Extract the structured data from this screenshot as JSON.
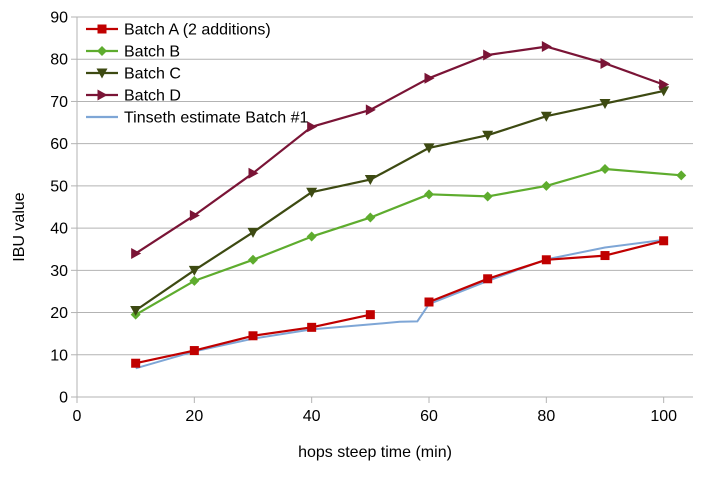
{
  "chart_data": {
    "type": "line",
    "title": "",
    "xlabel": "hops steep time (min)",
    "ylabel": "IBU value",
    "xlim": [
      0,
      105
    ],
    "ylim": [
      0,
      90
    ],
    "x_ticks": [
      0,
      20,
      40,
      60,
      80,
      100
    ],
    "y_ticks": [
      0,
      10,
      20,
      30,
      40,
      50,
      60,
      70,
      80,
      90
    ],
    "grid": "horizontal",
    "legend_position": "top-left",
    "series": [
      {
        "name": "Batch A (2 additions)",
        "color": "#c00000",
        "marker": "square",
        "segments": [
          [
            [
              10,
              8
            ],
            [
              20,
              11
            ],
            [
              30,
              14.5
            ],
            [
              40,
              16.5
            ],
            [
              50,
              19.5
            ]
          ],
          [
            [
              60,
              22.5
            ],
            [
              70,
              28
            ],
            [
              80,
              32.5
            ],
            [
              90,
              33.5
            ],
            [
              100,
              37
            ]
          ]
        ]
      },
      {
        "name": "Batch B",
        "color": "#5eac2e",
        "marker": "diamond",
        "segments": [
          [
            [
              10,
              19.5
            ],
            [
              20,
              27.5
            ],
            [
              30,
              32.5
            ],
            [
              40,
              38
            ],
            [
              50,
              42.5
            ],
            [
              60,
              48
            ],
            [
              70,
              47.5
            ],
            [
              80,
              50
            ],
            [
              90,
              54
            ],
            [
              103,
              52.5
            ]
          ]
        ]
      },
      {
        "name": "Batch C",
        "color": "#3d4a12",
        "marker": "triangle-down",
        "segments": [
          [
            [
              10,
              20.5
            ],
            [
              20,
              30
            ],
            [
              30,
              39
            ],
            [
              40,
              48.5
            ],
            [
              50,
              51.5
            ],
            [
              60,
              59
            ],
            [
              70,
              62
            ],
            [
              80,
              66.5
            ],
            [
              90,
              69.5
            ],
            [
              100,
              72.5
            ]
          ]
        ]
      },
      {
        "name": "Batch D",
        "color": "#7a1436",
        "marker": "triangle-right",
        "segments": [
          [
            [
              10,
              34
            ],
            [
              20,
              43
            ],
            [
              30,
              53
            ],
            [
              40,
              64
            ],
            [
              50,
              68
            ],
            [
              60,
              75.5
            ],
            [
              70,
              81
            ],
            [
              80,
              83
            ],
            [
              90,
              79
            ],
            [
              100,
              74
            ]
          ]
        ]
      },
      {
        "name": "Tinseth estimate Batch #1",
        "color": "#7ea6d6",
        "marker": "none",
        "segments": [
          [
            [
              10,
              6.8
            ],
            [
              20,
              10.8
            ],
            [
              30,
              13.8
            ],
            [
              40,
              16
            ],
            [
              50,
              17.2
            ],
            [
              55,
              17.8
            ],
            [
              58,
              17.9
            ],
            [
              60,
              22
            ],
            [
              70,
              27.5
            ],
            [
              80,
              32.6
            ],
            [
              90,
              35.4
            ],
            [
              100,
              37.2
            ]
          ]
        ]
      }
    ]
  }
}
